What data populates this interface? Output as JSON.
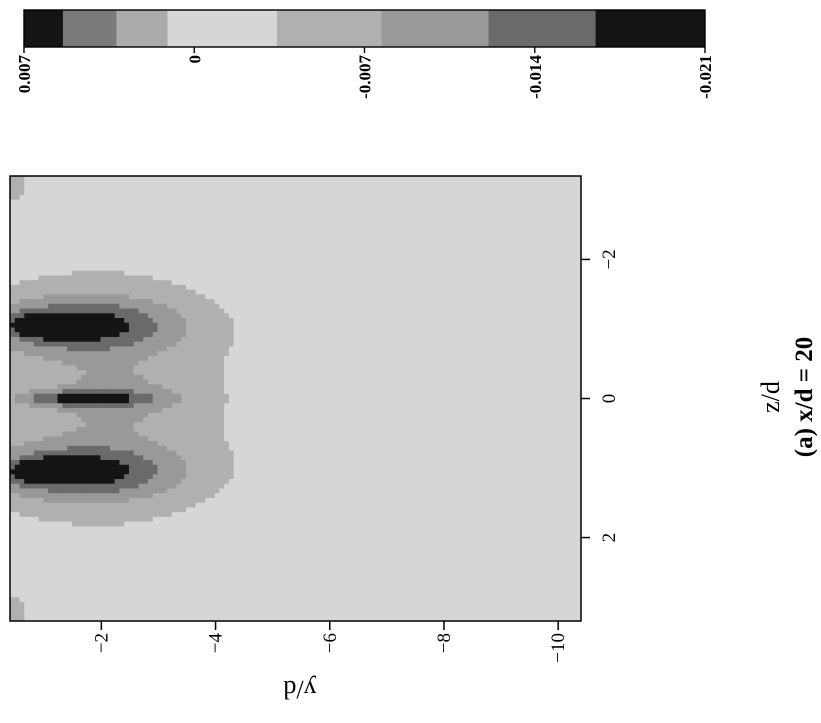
{
  "chart_data": {
    "type": "heatmap",
    "caption": "(a) x/d = 20",
    "xlabel": "z/d",
    "ylabel": "y/d",
    "xlim": [
      3.2,
      -3.2
    ],
    "ylim": [
      -10.4,
      -0.4
    ],
    "x_ticks": [
      2,
      0,
      -2
    ],
    "x_tick_labels": [
      "2",
      "0",
      "−2"
    ],
    "y_ticks": [
      -2,
      -4,
      -6,
      -8,
      -10
    ],
    "y_tick_labels": [
      "−2",
      "−4",
      "−6",
      "−8",
      "−10"
    ],
    "colorbar": {
      "range": [
        0.007,
        -0.021
      ],
      "ticks": [
        0.007,
        0,
        -0.007,
        -0.014,
        -0.021
      ],
      "tick_labels": [
        "0.007",
        "0",
        "-0.007",
        "-0.014",
        "-0.021"
      ],
      "levels": [
        {
          "from": 0.007,
          "to": 0.0054,
          "color": "#141414"
        },
        {
          "from": 0.0054,
          "to": 0.0032,
          "color": "#7a7a7a"
        },
        {
          "from": 0.0032,
          "to": 0.0011,
          "color": "#aaaaaa"
        },
        {
          "from": 0.0011,
          "to": -0.0034,
          "color": "#d6d6d6"
        },
        {
          "from": -0.0034,
          "to": -0.0077,
          "color": "#b0b0b0"
        },
        {
          "from": -0.0077,
          "to": -0.0121,
          "color": "#999999"
        },
        {
          "from": -0.0121,
          "to": -0.0165,
          "color": "#6a6a6a"
        },
        {
          "from": -0.0165,
          "to": -0.021,
          "color": "#141414"
        }
      ]
    },
    "field": {
      "background": 0,
      "features": [
        {
          "z": 1.05,
          "y": -1.8,
          "sz": 0.6,
          "sy": 1.6,
          "amp": -0.0055
        },
        {
          "z": 1.05,
          "y": -1.6,
          "sz": 0.25,
          "sy": 1.1,
          "amp": -0.013
        },
        {
          "z": 1.05,
          "y": -0.9,
          "sz": 0.1,
          "sy": 0.3,
          "amp": -0.016
        },
        {
          "z": -1.05,
          "y": -1.8,
          "sz": 0.6,
          "sy": 1.6,
          "amp": -0.0055
        },
        {
          "z": -1.05,
          "y": -1.6,
          "sz": 0.25,
          "sy": 1.1,
          "amp": -0.013
        },
        {
          "z": -1.05,
          "y": -0.9,
          "sz": 0.1,
          "sy": 0.3,
          "amp": -0.016
        },
        {
          "z": 0.0,
          "y": -1.7,
          "sz": 0.08,
          "sy": 0.8,
          "amp": -0.013
        },
        {
          "z": 0.0,
          "y": -2.3,
          "sz": 0.3,
          "sy": 1.0,
          "amp": -0.004
        },
        {
          "z": 0.0,
          "y": -2.5,
          "sz": 1.2,
          "sy": 1.8,
          "amp": -0.003
        },
        {
          "z": 3.05,
          "y": -0.5,
          "sz": 0.3,
          "sy": 0.25,
          "amp": -0.004
        },
        {
          "z": -3.05,
          "y": -0.5,
          "sz": 0.3,
          "sy": 0.25,
          "amp": -0.004
        }
      ]
    }
  }
}
